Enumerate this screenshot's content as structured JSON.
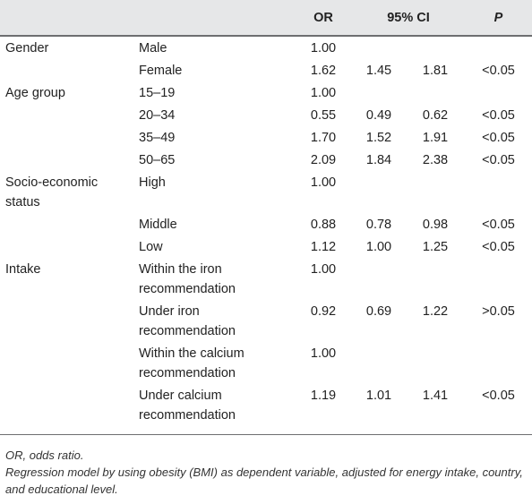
{
  "header": {
    "or": "OR",
    "ci": "95% CI",
    "p": "P"
  },
  "rows": [
    {
      "variable": "Gender",
      "level": "Male",
      "or": "1.00",
      "ci_low": "",
      "ci_high": "",
      "p": ""
    },
    {
      "variable": "",
      "level": "Female",
      "or": "1.62",
      "ci_low": "1.45",
      "ci_high": "1.81",
      "p": "<0.05"
    },
    {
      "variable": "Age group",
      "level": "15–19",
      "or": "1.00",
      "ci_low": "",
      "ci_high": "",
      "p": ""
    },
    {
      "variable": "",
      "level": "20–34",
      "or": "0.55",
      "ci_low": "0.49",
      "ci_high": "0.62",
      "p": "<0.05"
    },
    {
      "variable": "",
      "level": "35–49",
      "or": "1.70",
      "ci_low": "1.52",
      "ci_high": "1.91",
      "p": "<0.05"
    },
    {
      "variable": "",
      "level": "50–65",
      "or": "2.09",
      "ci_low": "1.84",
      "ci_high": "2.38",
      "p": "<0.05"
    },
    {
      "variable": "Socio-economic status",
      "level": "High",
      "or": "1.00",
      "ci_low": "",
      "ci_high": "",
      "p": ""
    },
    {
      "variable": "",
      "level": "Middle",
      "or": "0.88",
      "ci_low": "0.78",
      "ci_high": "0.98",
      "p": "<0.05"
    },
    {
      "variable": "",
      "level": "Low",
      "or": "1.12",
      "ci_low": "1.00",
      "ci_high": "1.25",
      "p": "<0.05"
    },
    {
      "variable": "Intake",
      "level": "Within the iron recommendation",
      "or": "1.00",
      "ci_low": "",
      "ci_high": "",
      "p": ""
    },
    {
      "variable": "",
      "level": "Under iron recommendation",
      "or": "0.92",
      "ci_low": "0.69",
      "ci_high": "1.22",
      "p": ">0.05"
    },
    {
      "variable": "",
      "level": "Within the calcium recommendation",
      "or": "1.00",
      "ci_low": "",
      "ci_high": "",
      "p": ""
    },
    {
      "variable": "",
      "level": "Under calcium recommendation",
      "or": "1.19",
      "ci_low": "1.01",
      "ci_high": "1.41",
      "p": "<0.05"
    }
  ],
  "footnotes": [
    "OR, odds ratio.",
    "Regression model by using obesity (BMI) as dependent variable, adjusted for energy intake, country, and educational level."
  ]
}
